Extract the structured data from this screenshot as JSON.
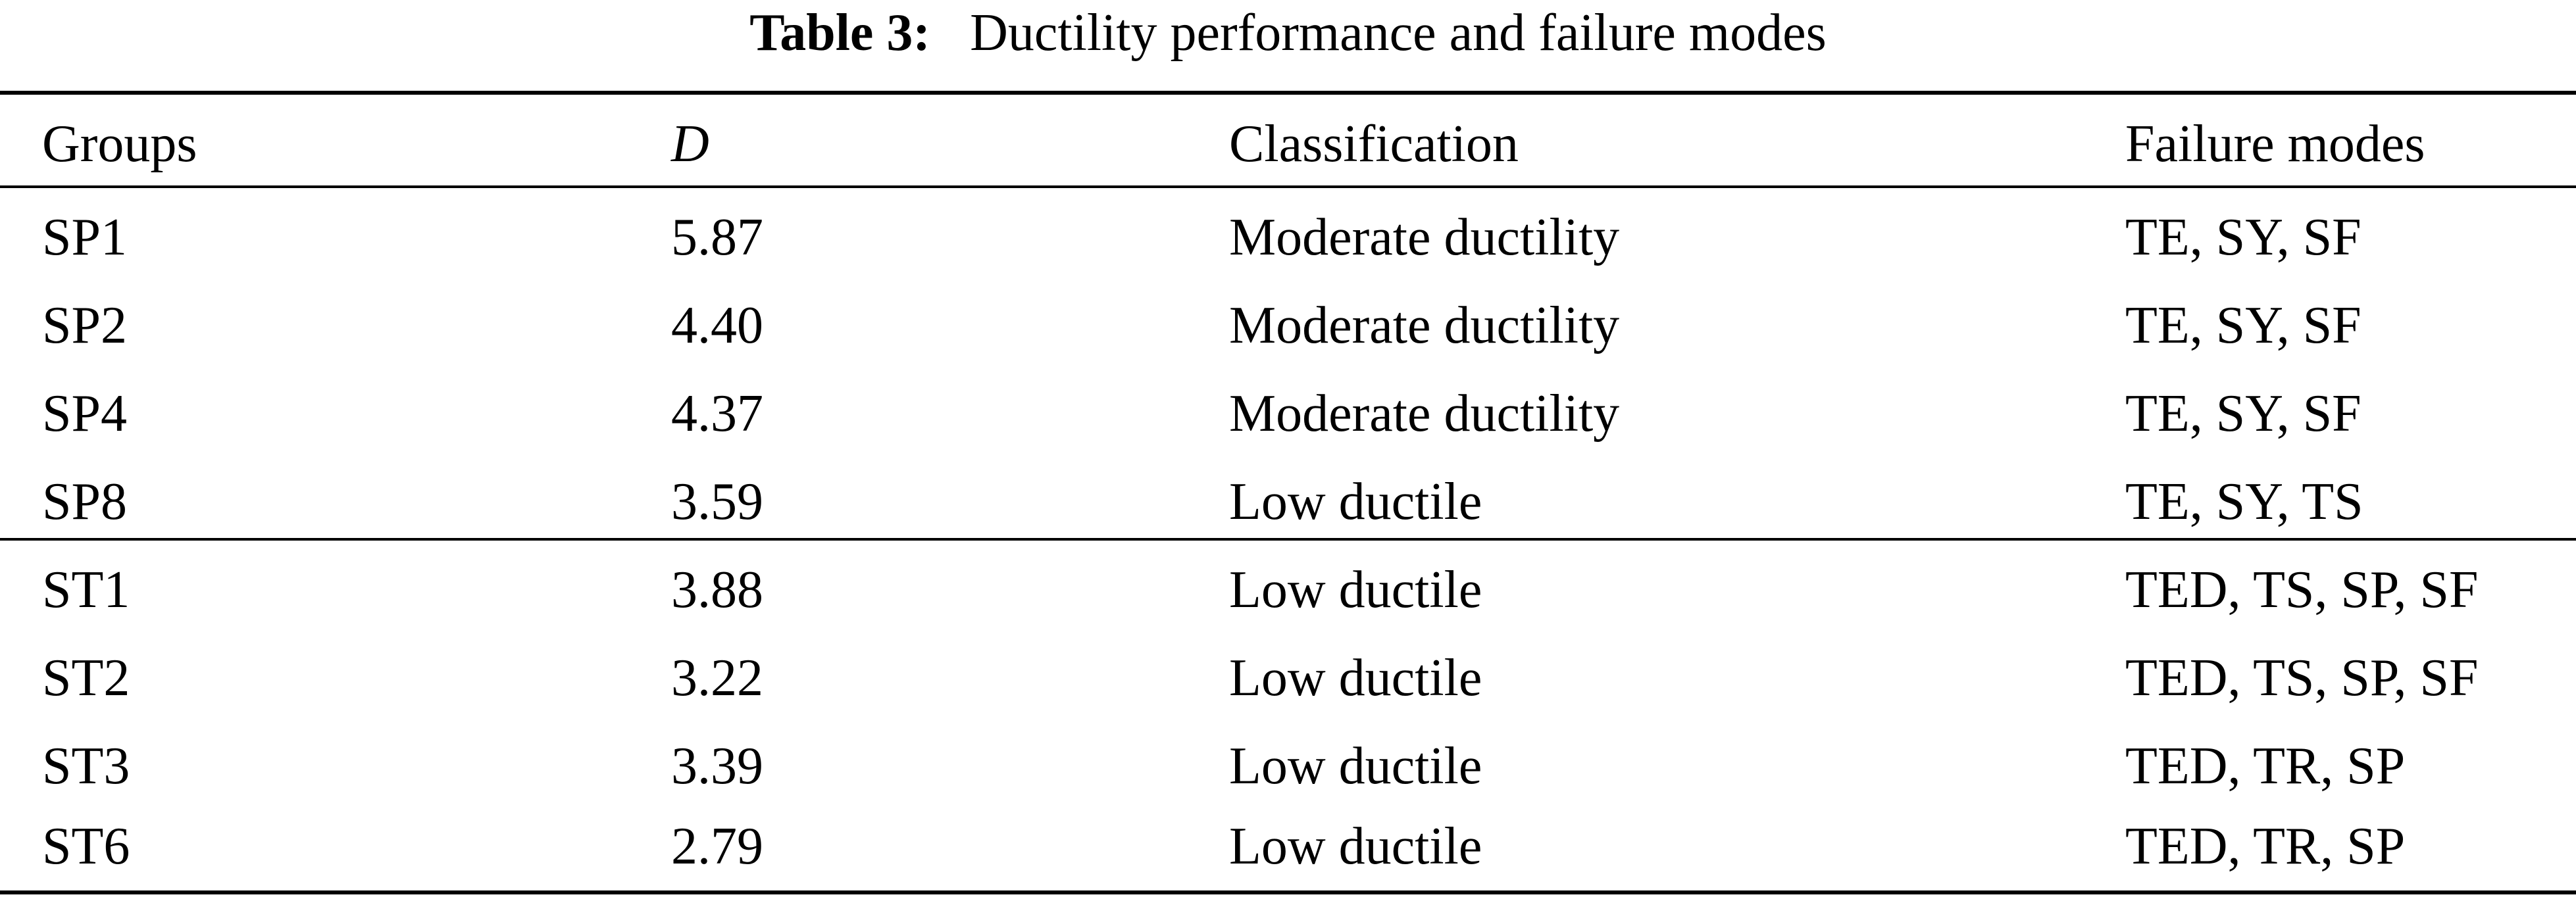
{
  "caption": {
    "label": "Table 3:",
    "title": "Ductility performance and failure modes"
  },
  "table": {
    "headers": {
      "groups": "Groups",
      "d": "D",
      "classification": "Classification",
      "failure_modes": "Failure modes"
    },
    "rows": [
      {
        "group": "SP1",
        "d": "5.87",
        "classification": "Moderate ductility",
        "failure_modes": "TE, SY, SF"
      },
      {
        "group": "SP2",
        "d": "4.40",
        "classification": "Moderate ductility",
        "failure_modes": "TE, SY, SF"
      },
      {
        "group": "SP4",
        "d": "4.37",
        "classification": "Moderate ductility",
        "failure_modes": "TE, SY, SF"
      },
      {
        "group": "SP8",
        "d": "3.59",
        "classification": "Low ductile",
        "failure_modes": "TE, SY, TS"
      },
      {
        "group": "ST1",
        "d": "3.88",
        "classification": "Low ductile",
        "failure_modes": "TED, TS, SP, SF"
      },
      {
        "group": "ST2",
        "d": "3.22",
        "classification": "Low ductile",
        "failure_modes": "TED, TS, SP, SF"
      },
      {
        "group": "ST3",
        "d": "3.39",
        "classification": "Low ductile",
        "failure_modes": "TED, TR, SP"
      },
      {
        "group": "ST6",
        "d": "2.79",
        "classification": "Low ductile",
        "failure_modes": "TED, TR, SP"
      }
    ]
  }
}
